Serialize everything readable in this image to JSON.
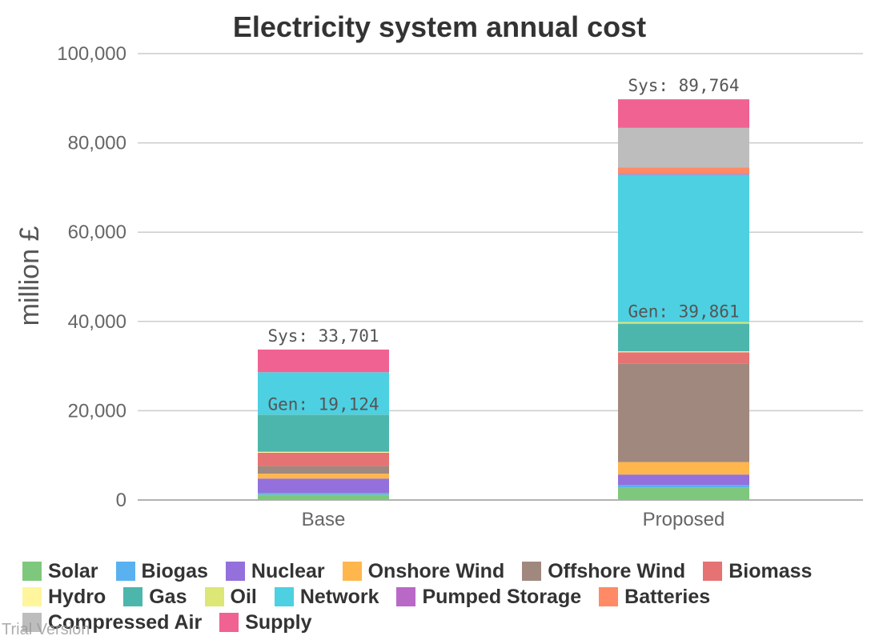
{
  "chart_data": {
    "type": "bar",
    "stacked": true,
    "title": "Electricity system annual cost",
    "ylabel": "million £",
    "ylim": [
      0,
      100000
    ],
    "yticks": [
      "0",
      "20,000",
      "40,000",
      "60,000",
      "80,000",
      "100,000"
    ],
    "categories": [
      "Base",
      "Proposed"
    ],
    "grid": true,
    "legend_position": "bottom",
    "series": [
      {
        "name": "Solar",
        "color": "#7ec87e",
        "values": [
          1200,
          2800
        ]
      },
      {
        "name": "Biogas",
        "color": "#5ab1ef",
        "values": [
          400,
          600
        ]
      },
      {
        "name": "Nuclear",
        "color": "#9370db",
        "values": [
          3200,
          2300
        ]
      },
      {
        "name": "Onshore Wind",
        "color": "#ffb74d",
        "values": [
          1100,
          2800
        ]
      },
      {
        "name": "Offshore Wind",
        "color": "#a1887f",
        "values": [
          1700,
          22100
        ]
      },
      {
        "name": "Biomass",
        "color": "#e57373",
        "values": [
          3000,
          2500
        ]
      },
      {
        "name": "Hydro",
        "color": "#fff59d",
        "values": [
          200,
          200
        ]
      },
      {
        "name": "Gas",
        "color": "#4db6ac",
        "values": [
          8300,
          6200
        ]
      },
      {
        "name": "Oil",
        "color": "#dce775",
        "values": [
          24,
          361
        ]
      },
      {
        "name": "Network",
        "color": "#4dd0e1",
        "values": [
          9500,
          33000
        ]
      },
      {
        "name": "Pumped Storage",
        "color": "#ba68c8",
        "values": [
          0,
          200
        ]
      },
      {
        "name": "Batteries",
        "color": "#ff8a65",
        "values": [
          0,
          1400
        ]
      },
      {
        "name": "Compressed Air",
        "color": "#bdbdbd",
        "values": [
          0,
          8900
        ]
      },
      {
        "name": "Supply",
        "color": "#f06292",
        "values": [
          5077,
          6403
        ]
      }
    ],
    "annotations": {
      "sys": [
        "Sys: 33,701",
        "Sys: 89,764"
      ],
      "gen": [
        "Gen: 19,124",
        "Gen: 39,861"
      ],
      "gen_values": [
        19124,
        39861
      ],
      "sys_values": [
        33701,
        89764
      ]
    }
  },
  "watermark": "Trial Version"
}
